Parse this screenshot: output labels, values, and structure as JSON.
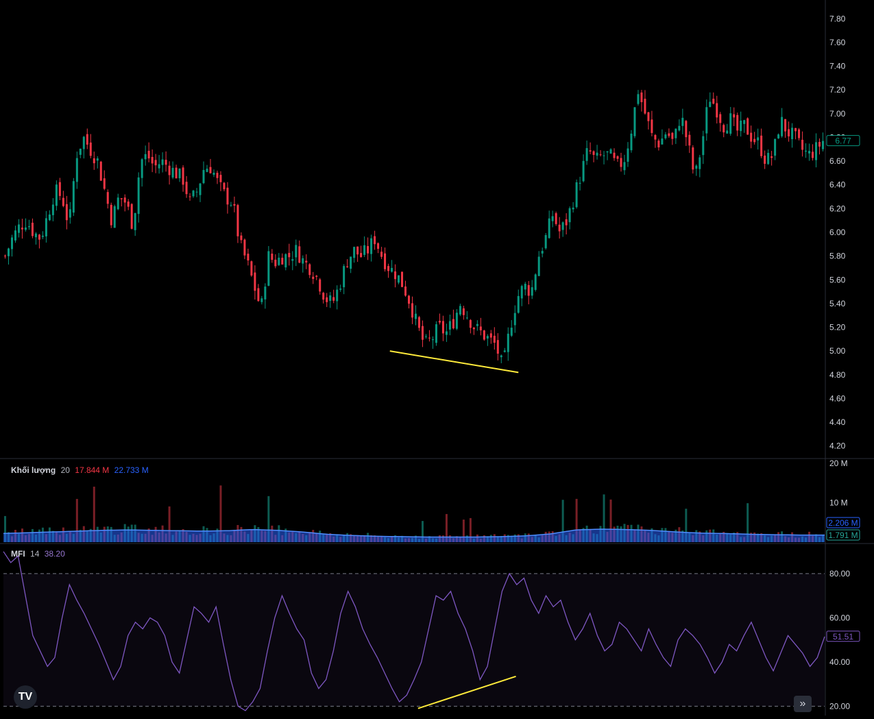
{
  "app": {
    "logo_text": "TV",
    "goto_realtime_glyph": "»"
  },
  "colors": {
    "up": "#089981",
    "down": "#f23645",
    "volume_ma": "#2962ff",
    "mfi": "#7e57c2",
    "trendline": "#ffeb3b",
    "background": "#000000"
  },
  "price_pane": {
    "last_price_label": "6.77"
  },
  "volume_pane": {
    "name": "Khối lượng",
    "length": "20",
    "value_vol": "17.844 M",
    "value_ma": "22.733 M",
    "badge_top": "2.206 M",
    "badge_bottom": "1.791 M"
  },
  "mfi_pane": {
    "name": "MFI",
    "length": "14",
    "value": "38.20",
    "last_label": "51.51"
  },
  "chart_data": [
    {
      "type": "candlestick",
      "title": "",
      "y_ticks": [
        "7.80",
        "7.60",
        "7.40",
        "7.20",
        "7.00",
        "6.80",
        "6.60",
        "6.40",
        "6.20",
        "6.00",
        "5.80",
        "5.60",
        "5.40",
        "5.20",
        "5.00",
        "4.80",
        "4.60",
        "4.40",
        "4.20"
      ],
      "ylim": [
        4.1,
        7.9
      ],
      "close_path": [
        5.8,
        5.95,
        6.05,
        6.1,
        6.0,
        5.95,
        6.15,
        6.35,
        6.3,
        6.05,
        6.65,
        6.8,
        6.7,
        6.6,
        6.35,
        6.1,
        6.3,
        6.25,
        6.05,
        6.6,
        6.65,
        6.55,
        6.6,
        6.55,
        6.5,
        6.45,
        6.25,
        6.35,
        6.55,
        6.55,
        6.4,
        6.3,
        6.25,
        5.9,
        5.75,
        5.55,
        5.35,
        5.8,
        5.75,
        5.8,
        5.8,
        5.85,
        5.75,
        5.7,
        5.6,
        5.45,
        5.4,
        5.55,
        5.75,
        5.85,
        5.8,
        5.85,
        5.95,
        5.8,
        5.7,
        5.65,
        5.55,
        5.4,
        5.2,
        5.05,
        5.1,
        5.2,
        5.15,
        5.25,
        5.4,
        5.3,
        5.2,
        5.15,
        5.1,
        5.05,
        4.85,
        5.2,
        5.45,
        5.55,
        5.5,
        5.8,
        5.95,
        6.15,
        6.0,
        6.1,
        6.3,
        6.5,
        6.7,
        6.6,
        6.65,
        6.65,
        6.55,
        6.6,
        6.85,
        7.2,
        7.0,
        6.8,
        6.75,
        6.85,
        6.75,
        7.0,
        6.75,
        6.45,
        6.75,
        7.15,
        7.05,
        6.9,
        6.95,
        6.85,
        6.9,
        6.8,
        6.75,
        6.6,
        6.65,
        6.95,
        6.85,
        6.8,
        6.7,
        6.65,
        6.7,
        6.77
      ],
      "trendline": {
        "from": [
          0.4706,
          5.0
        ],
        "to": [
          0.6271,
          4.82
        ]
      }
    },
    {
      "type": "bar",
      "title": "Khối lượng",
      "y_ticks": [
        "20 M",
        "10 M"
      ],
      "ylim": [
        0,
        21
      ],
      "ma_level_path": [
        2.2,
        2.4,
        2.6,
        2.8,
        3.0,
        3.1,
        3.0,
        2.9,
        2.8,
        2.9,
        3.2,
        3.0,
        2.6,
        2.0,
        1.7,
        1.5,
        1.4,
        1.3,
        1.3,
        1.3,
        1.4,
        1.6,
        2.1,
        3.1,
        3.3,
        3.2,
        3.0,
        2.6,
        2.3,
        2.2,
        2.0,
        1.9,
        1.8,
        1.8
      ]
    },
    {
      "type": "line",
      "title": "MFI",
      "y_ticks": [
        "80.00",
        "60.00",
        "40.00",
        "20.00"
      ],
      "ylim": [
        17,
        93
      ],
      "band_upper": 80,
      "band_lower": 20,
      "values": [
        90,
        85,
        88,
        70,
        52,
        45,
        38,
        42,
        60,
        75,
        68,
        62,
        55,
        48,
        40,
        32,
        38,
        52,
        58,
        55,
        60,
        58,
        52,
        40,
        35,
        50,
        65,
        62,
        58,
        65,
        48,
        32,
        20,
        18,
        22,
        28,
        45,
        60,
        70,
        62,
        55,
        50,
        35,
        28,
        32,
        45,
        62,
        72,
        65,
        55,
        48,
        42,
        35,
        28,
        22,
        25,
        32,
        40,
        55,
        70,
        68,
        72,
        62,
        55,
        45,
        32,
        38,
        55,
        72,
        80,
        75,
        78,
        68,
        62,
        70,
        65,
        68,
        58,
        50,
        55,
        62,
        52,
        45,
        48,
        58,
        55,
        50,
        45,
        55,
        48,
        42,
        38,
        50,
        55,
        52,
        48,
        42,
        35,
        40,
        48,
        45,
        52,
        58,
        50,
        42,
        36,
        44,
        52,
        48,
        44,
        38,
        42,
        51.51
      ],
      "trendline": {
        "from": [
          0.5049,
          19.0
        ],
        "to": [
          0.624,
          33.5
        ]
      }
    }
  ]
}
